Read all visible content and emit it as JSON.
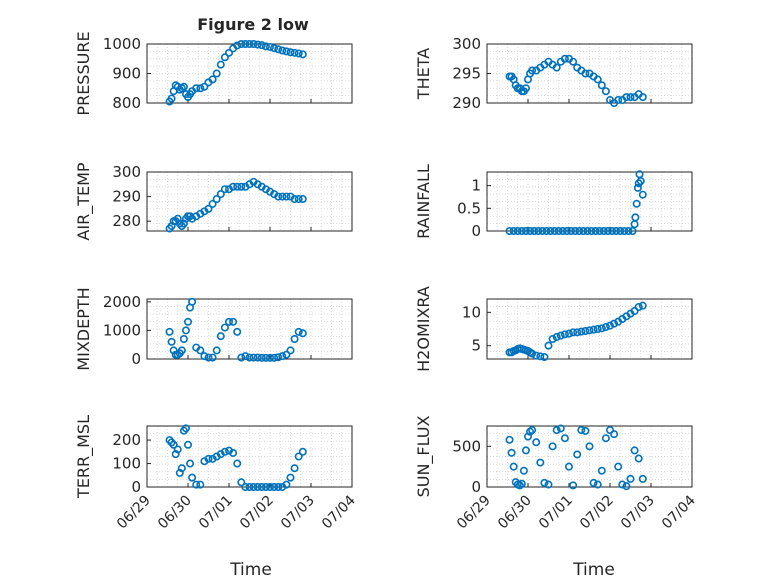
{
  "figure": {
    "title": "Figure 2 low",
    "xlabel": "Time",
    "x_ticks": [
      "06/29",
      "06/30",
      "07/01",
      "07/02",
      "07/03",
      "07/04"
    ],
    "marker_color": "#0072bd",
    "grid": "major and minor dotted"
  },
  "chart_data": [
    {
      "type": "scatter",
      "ylabel": "PRESSURE",
      "xlim": [
        0,
        5
      ],
      "ylim": [
        800,
        1000
      ],
      "y_ticks": [
        "800",
        "900",
        "1000"
      ],
      "x": [
        0.55,
        0.6,
        0.65,
        0.7,
        0.75,
        0.8,
        0.85,
        0.9,
        0.95,
        1.0,
        1.05,
        1.1,
        1.2,
        1.3,
        1.4,
        1.5,
        1.6,
        1.7,
        1.8,
        1.9,
        2.0,
        2.1,
        2.2,
        2.3,
        2.4,
        2.5,
        2.6,
        2.7,
        2.8,
        2.9,
        3.0,
        3.1,
        3.2,
        3.3,
        3.4,
        3.5,
        3.6,
        3.7,
        3.8
      ],
      "y": [
        805,
        815,
        840,
        860,
        855,
        845,
        850,
        855,
        830,
        820,
        830,
        840,
        850,
        850,
        855,
        870,
        880,
        900,
        930,
        955,
        970,
        985,
        995,
        1000,
        1003,
        1002,
        1000,
        998,
        996,
        992,
        990,
        986,
        982,
        978,
        975,
        972,
        970,
        968,
        965
      ]
    },
    {
      "type": "scatter",
      "ylabel": "THETA",
      "xlim": [
        0,
        5
      ],
      "ylim": [
        290,
        300
      ],
      "y_ticks": [
        "290",
        "295",
        "300"
      ],
      "x": [
        0.55,
        0.6,
        0.65,
        0.7,
        0.75,
        0.8,
        0.85,
        0.9,
        0.95,
        1.0,
        1.05,
        1.1,
        1.2,
        1.3,
        1.4,
        1.5,
        1.6,
        1.7,
        1.8,
        1.9,
        2.0,
        2.1,
        2.2,
        2.3,
        2.4,
        2.5,
        2.6,
        2.7,
        2.8,
        2.9,
        3.0,
        3.1,
        3.2,
        3.3,
        3.4,
        3.5,
        3.6,
        3.7,
        3.8
      ],
      "y": [
        294.5,
        294.5,
        294,
        293,
        292.5,
        292.5,
        292,
        292,
        292.5,
        294,
        295,
        295.5,
        295.5,
        296,
        296.5,
        297,
        296.5,
        296,
        297,
        297.5,
        297.5,
        297,
        296,
        295.5,
        295,
        295,
        294.5,
        294,
        293,
        292,
        290.5,
        290,
        290.5,
        290.5,
        291,
        291,
        291,
        291.5,
        291
      ]
    },
    {
      "type": "scatter",
      "ylabel": "AIR_TEMP",
      "xlim": [
        0,
        5
      ],
      "ylim": [
        276,
        300
      ],
      "y_ticks": [
        "280",
        "290",
        "300"
      ],
      "x": [
        0.55,
        0.6,
        0.65,
        0.7,
        0.75,
        0.8,
        0.85,
        0.9,
        0.95,
        1.0,
        1.05,
        1.1,
        1.2,
        1.3,
        1.4,
        1.5,
        1.6,
        1.7,
        1.8,
        1.9,
        2.0,
        2.1,
        2.2,
        2.3,
        2.4,
        2.5,
        2.6,
        2.7,
        2.8,
        2.9,
        3.0,
        3.1,
        3.2,
        3.3,
        3.4,
        3.5,
        3.6,
        3.7,
        3.8
      ],
      "y": [
        277,
        278,
        280,
        280,
        281,
        279,
        278,
        279,
        281,
        282,
        282,
        281,
        282,
        283,
        284,
        285,
        287,
        289,
        291,
        293,
        293,
        294,
        294,
        294,
        294,
        295,
        296,
        295,
        294,
        293,
        292,
        291,
        290,
        290,
        290,
        290,
        289,
        289,
        289
      ]
    },
    {
      "type": "scatter",
      "ylabel": "RAINFALL",
      "xlim": [
        0,
        5
      ],
      "ylim": [
        0,
        1.3
      ],
      "y_ticks": [
        "0",
        "0.5",
        "1"
      ],
      "x": [
        0.55,
        0.65,
        0.75,
        0.85,
        0.95,
        1.05,
        1.15,
        1.25,
        1.35,
        1.45,
        1.55,
        1.65,
        1.75,
        1.85,
        1.95,
        2.05,
        2.15,
        2.25,
        2.35,
        2.45,
        2.55,
        2.65,
        2.75,
        2.85,
        2.95,
        3.05,
        3.15,
        3.25,
        3.35,
        3.45,
        3.55,
        3.6,
        3.62,
        3.65,
        3.68,
        3.7,
        3.72,
        3.75,
        3.8
      ],
      "y": [
        0,
        0,
        0,
        0,
        0,
        0,
        0,
        0,
        0,
        0,
        0,
        0,
        0,
        0,
        0,
        0,
        0,
        0,
        0,
        0,
        0,
        0,
        0,
        0,
        0,
        0,
        0,
        0,
        0,
        0,
        0,
        0.15,
        0.3,
        0.6,
        0.95,
        1.05,
        1.25,
        1.1,
        0.8
      ]
    },
    {
      "type": "scatter",
      "ylabel": "MIXDEPTH",
      "xlim": [
        0,
        5
      ],
      "ylim": [
        0,
        2100
      ],
      "y_ticks": [
        "0",
        "1000",
        "2000"
      ],
      "x": [
        0.55,
        0.6,
        0.65,
        0.7,
        0.75,
        0.8,
        0.85,
        0.9,
        0.95,
        1.0,
        1.05,
        1.1,
        1.2,
        1.3,
        1.4,
        1.5,
        1.6,
        1.7,
        1.8,
        1.9,
        2.0,
        2.1,
        2.2,
        2.3,
        2.4,
        2.5,
        2.6,
        2.7,
        2.8,
        2.9,
        3.0,
        3.1,
        3.2,
        3.3,
        3.4,
        3.5,
        3.6,
        3.7,
        3.8
      ],
      "y": [
        950,
        600,
        300,
        150,
        150,
        200,
        300,
        700,
        1000,
        1300,
        1800,
        2000,
        400,
        300,
        100,
        50,
        50,
        300,
        800,
        1100,
        1300,
        1300,
        950,
        50,
        100,
        50,
        50,
        50,
        40,
        40,
        40,
        40,
        60,
        100,
        150,
        300,
        700,
        950,
        900
      ]
    },
    {
      "type": "scatter",
      "ylabel": "H2OMIXRA",
      "xlim": [
        0,
        5
      ],
      "ylim": [
        3,
        12
      ],
      "y_ticks": [
        "5",
        "10"
      ],
      "x": [
        0.55,
        0.6,
        0.65,
        0.7,
        0.75,
        0.8,
        0.85,
        0.9,
        0.95,
        1.0,
        1.05,
        1.1,
        1.2,
        1.3,
        1.4,
        1.5,
        1.6,
        1.7,
        1.8,
        1.9,
        2.0,
        2.1,
        2.2,
        2.3,
        2.4,
        2.5,
        2.6,
        2.7,
        2.8,
        2.9,
        3.0,
        3.1,
        3.2,
        3.3,
        3.4,
        3.5,
        3.6,
        3.7,
        3.8
      ],
      "y": [
        4,
        4,
        4.2,
        4.3,
        4.5,
        4.6,
        4.5,
        4.4,
        4.3,
        4.2,
        4.0,
        3.8,
        3.5,
        3.4,
        3.3,
        5,
        6,
        6.3,
        6.5,
        6.7,
        6.8,
        7,
        7,
        7.1,
        7.2,
        7.3,
        7.4,
        7.5,
        7.6,
        7.8,
        8,
        8.3,
        8.6,
        9,
        9.4,
        9.8,
        10.2,
        10.8,
        11
      ]
    },
    {
      "type": "scatter",
      "ylabel": "TERR_MSL",
      "xlim": [
        0,
        5
      ],
      "ylim": [
        0,
        260
      ],
      "y_ticks": [
        "0",
        "100",
        "200"
      ],
      "x": [
        0.55,
        0.6,
        0.65,
        0.7,
        0.75,
        0.8,
        0.85,
        0.9,
        0.95,
        1.0,
        1.05,
        1.1,
        1.2,
        1.3,
        1.4,
        1.5,
        1.6,
        1.7,
        1.8,
        1.9,
        2.0,
        2.1,
        2.2,
        2.3,
        2.4,
        2.5,
        2.6,
        2.7,
        2.8,
        2.9,
        3.0,
        3.1,
        3.2,
        3.3,
        3.4,
        3.5,
        3.6,
        3.7,
        3.8
      ],
      "y": [
        200,
        190,
        180,
        140,
        160,
        60,
        80,
        240,
        250,
        180,
        100,
        40,
        10,
        10,
        110,
        120,
        120,
        130,
        140,
        150,
        155,
        145,
        100,
        20,
        0,
        0,
        0,
        0,
        0,
        0,
        0,
        0,
        0,
        0,
        10,
        40,
        80,
        130,
        150
      ]
    },
    {
      "type": "scatter",
      "ylabel": "SUN_FLUX",
      "xlim": [
        0,
        5
      ],
      "ylim": [
        0,
        750
      ],
      "y_ticks": [
        "0",
        "500"
      ],
      "x": [
        0.55,
        0.6,
        0.65,
        0.7,
        0.75,
        0.8,
        0.85,
        0.9,
        0.95,
        1.0,
        1.05,
        1.1,
        1.2,
        1.3,
        1.4,
        1.5,
        1.6,
        1.7,
        1.8,
        1.9,
        2.0,
        2.1,
        2.2,
        2.3,
        2.4,
        2.5,
        2.6,
        2.7,
        2.8,
        2.9,
        3.0,
        3.1,
        3.2,
        3.3,
        3.4,
        3.5,
        3.6,
        3.7,
        3.8
      ],
      "y": [
        580,
        420,
        250,
        60,
        30,
        20,
        40,
        200,
        450,
        620,
        680,
        700,
        550,
        300,
        50,
        30,
        500,
        700,
        720,
        600,
        250,
        20,
        400,
        700,
        690,
        500,
        50,
        30,
        200,
        600,
        700,
        650,
        250,
        30,
        10,
        100,
        450,
        350,
        100
      ]
    }
  ]
}
